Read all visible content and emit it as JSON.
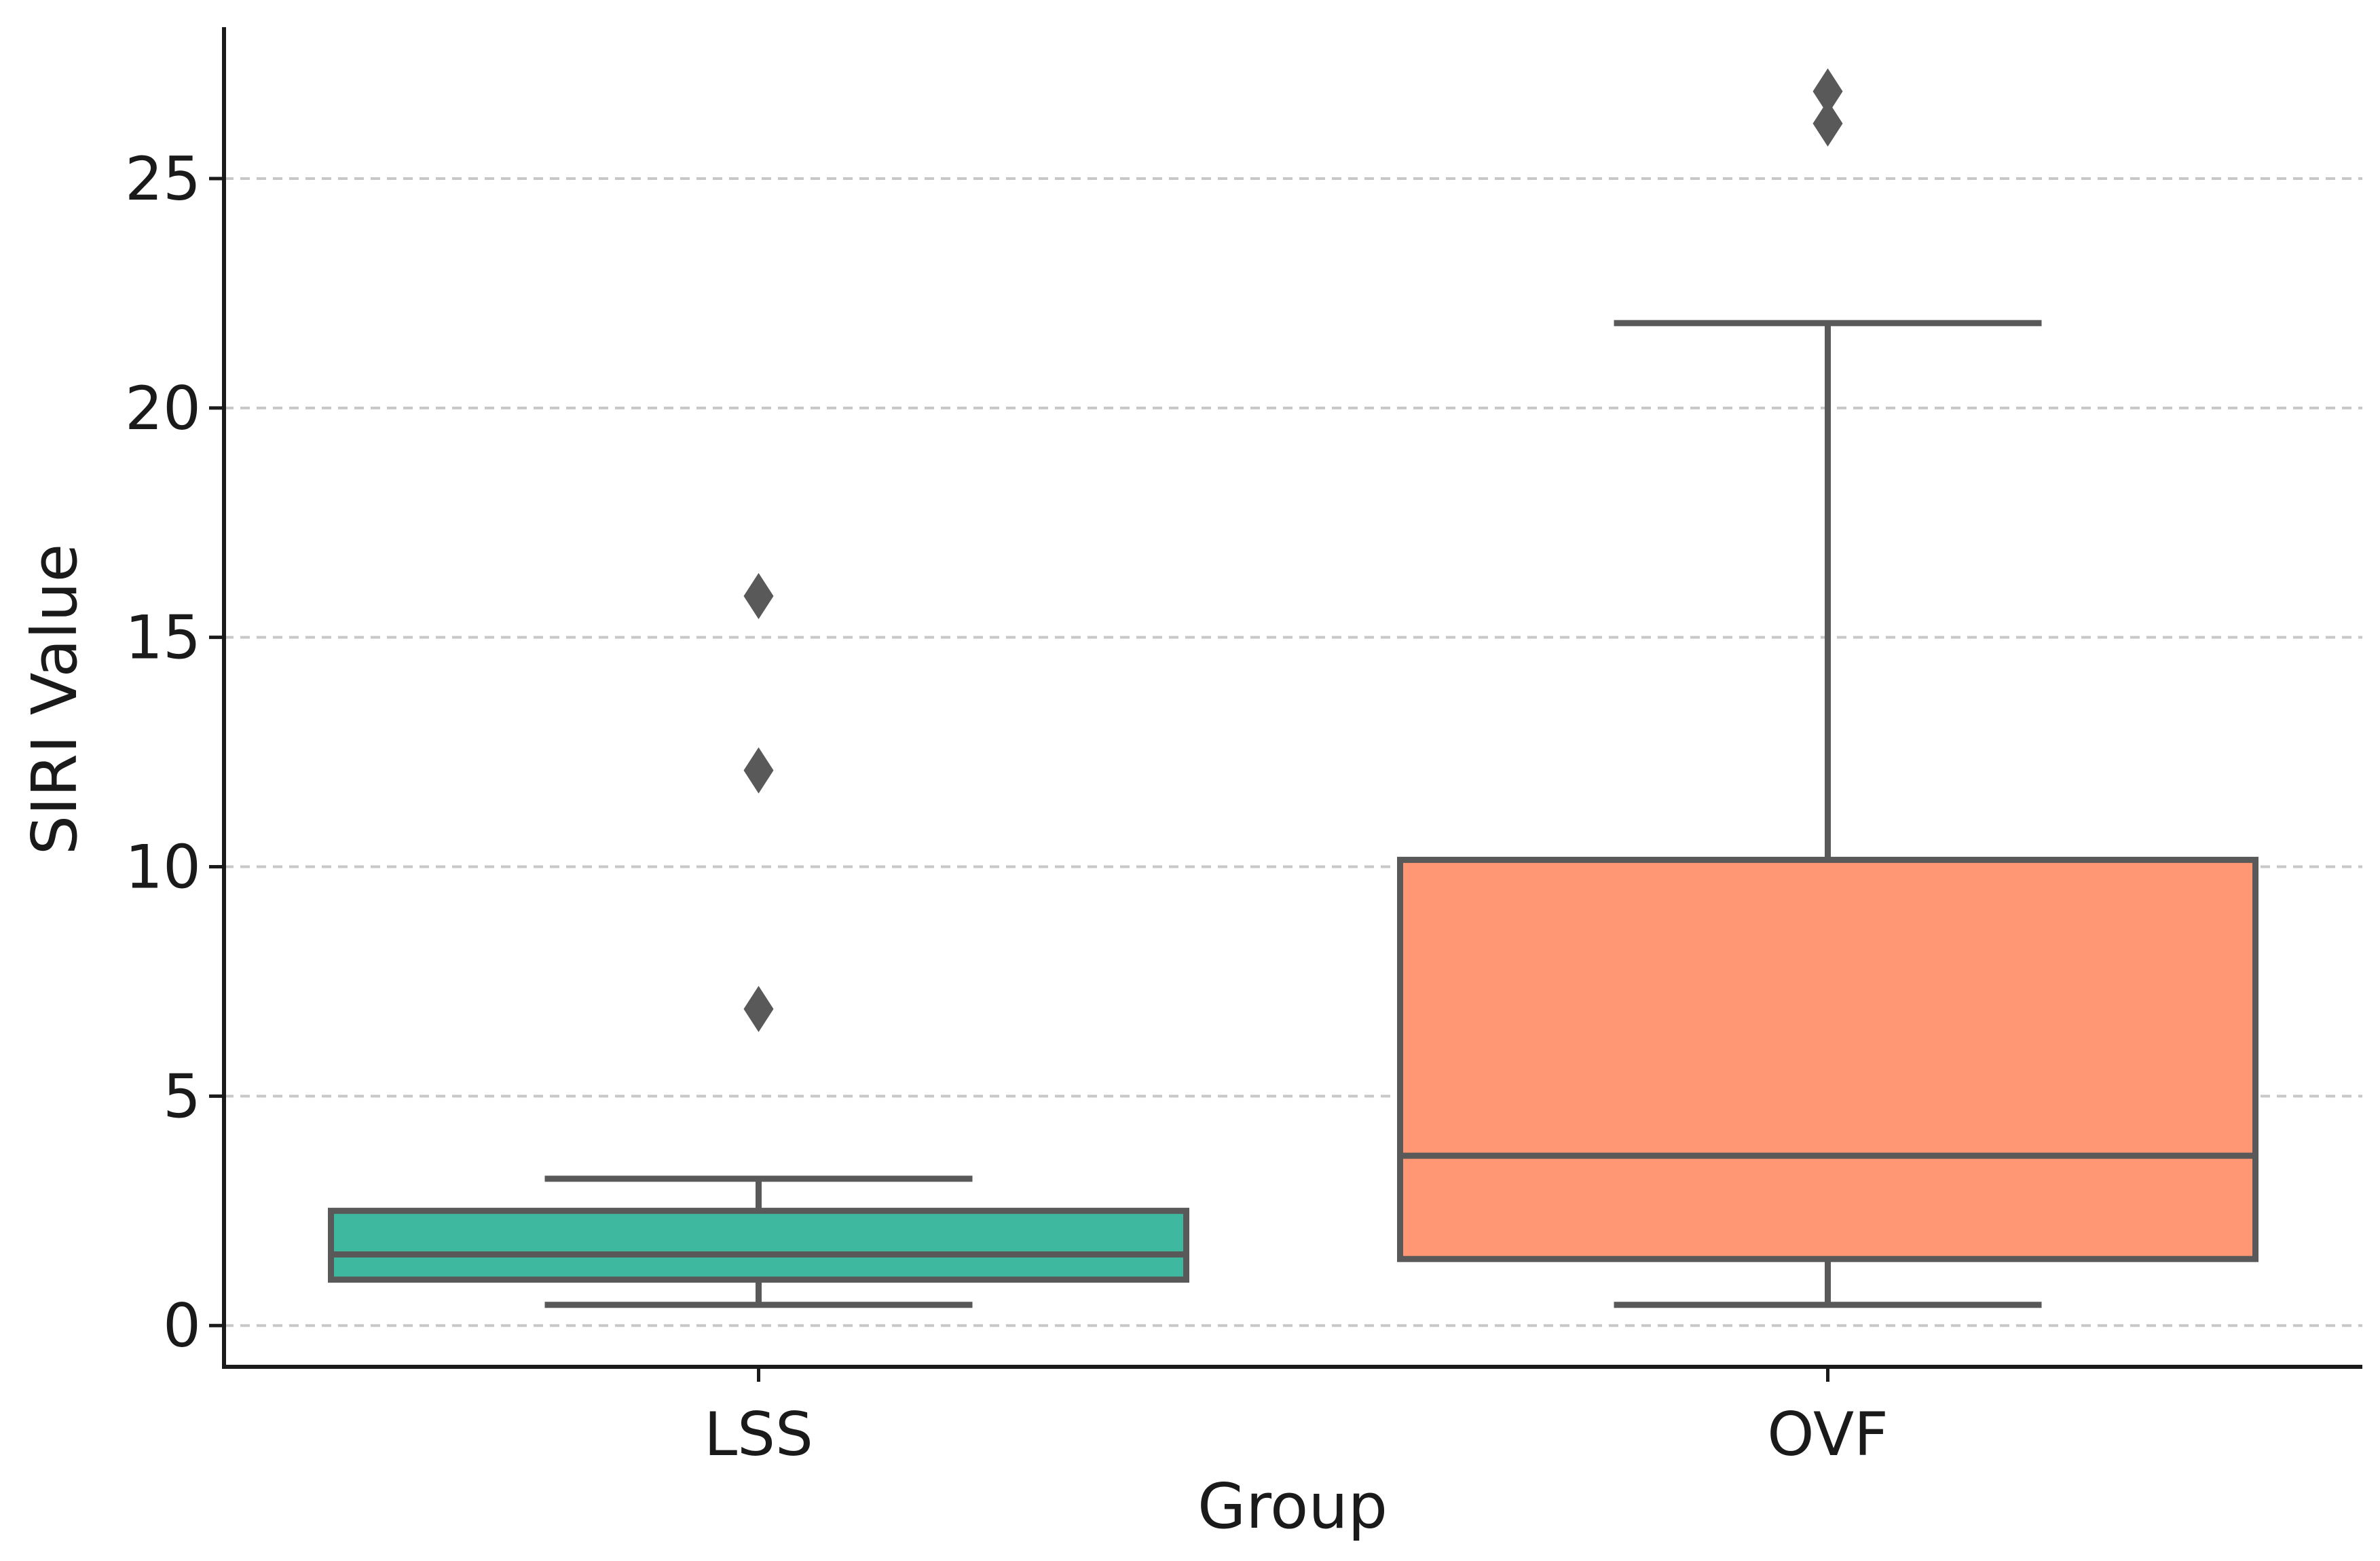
{
  "chart_data": {
    "type": "box",
    "xlabel": "Group",
    "ylabel": "SIRI Value",
    "categories": [
      "LSS",
      "OVF"
    ],
    "ylim": [
      -0.9,
      28.3
    ],
    "yticks": [
      0,
      5,
      10,
      15,
      20,
      25
    ],
    "grid": "horizontal dashed",
    "boxes": [
      {
        "name": "LSS",
        "whisker_low": 0.45,
        "q1": 1.0,
        "median": 1.55,
        "q3": 2.5,
        "whisker_high": 3.2,
        "outliers": [
          6.9,
          12.1,
          15.9
        ],
        "color": "#3fb8a0"
      },
      {
        "name": "OVF",
        "whisker_low": 0.45,
        "q1": 1.45,
        "median": 3.7,
        "q3": 10.15,
        "whisker_high": 21.85,
        "outliers": [
          26.2,
          26.9
        ],
        "color": "#ff9775"
      }
    ],
    "edge_color": "#595959",
    "grid_color": "#c8c8c8"
  }
}
